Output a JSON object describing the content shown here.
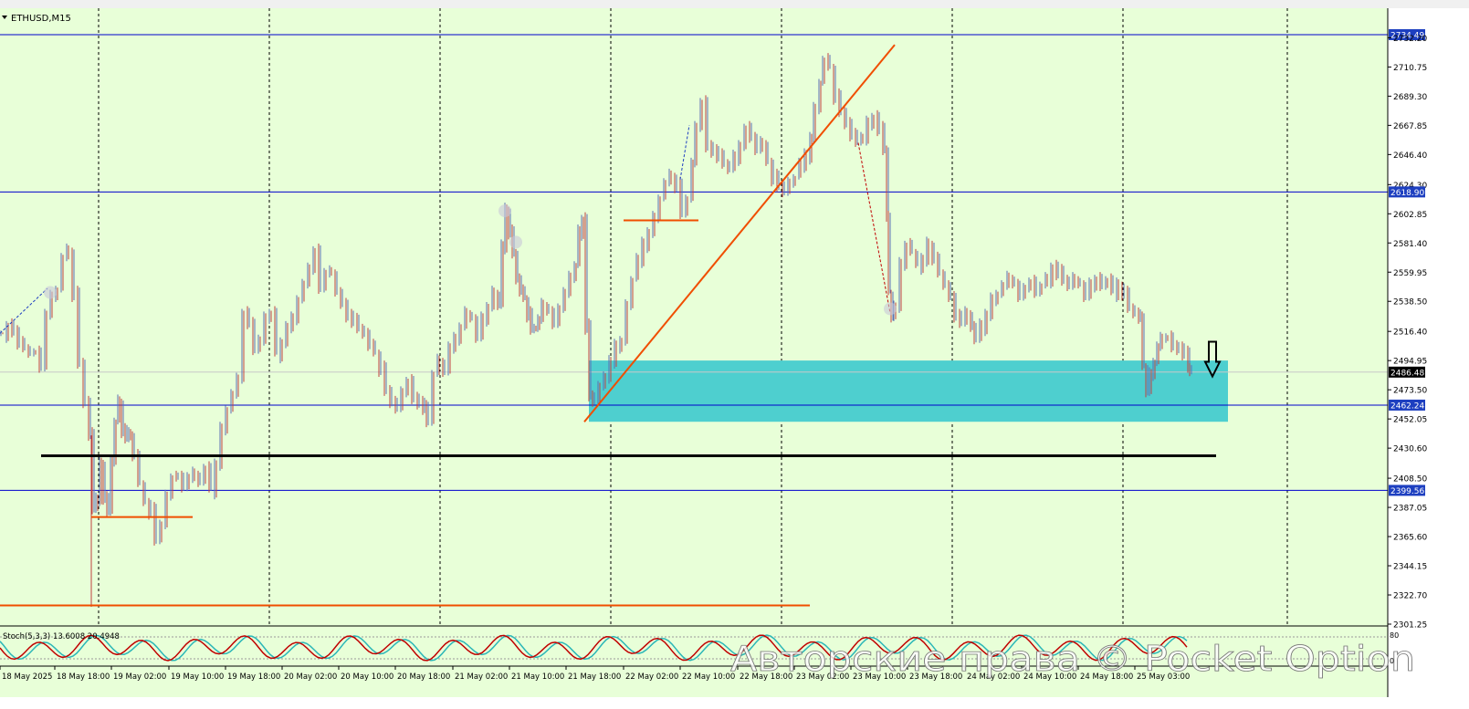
{
  "chart_data": {
    "type": "candlestick",
    "title": "ETHUSD,M15",
    "symbol": "ETHUSD",
    "timeframe": "M15",
    "ylim": [
      2301.25,
      2736.0
    ],
    "yticks": [
      "2734.49",
      "2732.20",
      "2710.75",
      "2689.30",
      "2667.85",
      "2646.40",
      "2624.30",
      "2618.90",
      "2602.85",
      "2581.40",
      "2559.95",
      "2538.50",
      "2516.40",
      "2494.95",
      "2486.48",
      "2473.50",
      "2462.24",
      "2452.05",
      "2430.60",
      "2408.50",
      "2399.56",
      "2387.05",
      "2365.60",
      "2344.15",
      "2322.70",
      "2301.25"
    ],
    "xticks": [
      "18 May 2025",
      "18 May 18:00",
      "19 May 02:00",
      "19 May 10:00",
      "19 May 18:00",
      "20 May 02:00",
      "20 May 10:00",
      "20 May 18:00",
      "21 May 02:00",
      "21 May 10:00",
      "21 May 18:00",
      "22 May 02:00",
      "22 May 10:00",
      "22 May 18:00",
      "23 May 02:00",
      "23 May 10:00",
      "23 May 18:00",
      "24 May 02:00",
      "24 May 10:00",
      "24 May 18:00",
      "25 May 03:00"
    ],
    "current_price": 2486.48,
    "horizontal_levels": [
      {
        "price": 2734.49,
        "label": "2734.49",
        "color": "#0000cc"
      },
      {
        "price": 2618.9,
        "label": "2618.90",
        "color": "#0000cc"
      },
      {
        "price": 2462.24,
        "label": "2462.24",
        "color": "#0000cc"
      },
      {
        "price": 2399.56,
        "label": "2399.56",
        "color": "#0000cc"
      }
    ],
    "series": [
      {
        "kind": "price-path",
        "points": [
          [
            0,
            2515
          ],
          [
            6,
            2520
          ],
          [
            12,
            2518
          ],
          [
            18,
            2508
          ],
          [
            24,
            2505
          ],
          [
            30,
            2500
          ],
          [
            36,
            2500
          ],
          [
            42,
            2493
          ],
          [
            48,
            2530
          ],
          [
            54,
            2542
          ],
          [
            60,
            2548
          ],
          [
            66,
            2570
          ],
          [
            72,
            2575
          ],
          [
            78,
            2545
          ],
          [
            84,
            2495
          ],
          [
            90,
            2465
          ],
          [
            96,
            2440
          ],
          [
            100,
            2385
          ],
          [
            104,
            2395
          ],
          [
            108,
            2420
          ],
          [
            112,
            2395
          ],
          [
            116,
            2385
          ],
          [
            120,
            2420
          ],
          [
            124,
            2450
          ],
          [
            128,
            2465
          ],
          [
            132,
            2445
          ],
          [
            136,
            2440
          ],
          [
            140,
            2440
          ],
          [
            144,
            2425
          ],
          [
            150,
            2405
          ],
          [
            156,
            2390
          ],
          [
            162,
            2385
          ],
          [
            168,
            2365
          ],
          [
            174,
            2375
          ],
          [
            180,
            2395
          ],
          [
            186,
            2410
          ],
          [
            192,
            2408
          ],
          [
            198,
            2405
          ],
          [
            204,
            2410
          ],
          [
            210,
            2412
          ],
          [
            216,
            2406
          ],
          [
            222,
            2415
          ],
          [
            228,
            2400
          ],
          [
            234,
            2420
          ],
          [
            240,
            2445
          ],
          [
            246,
            2460
          ],
          [
            252,
            2470
          ],
          [
            258,
            2480
          ],
          [
            264,
            2530
          ],
          [
            270,
            2525
          ],
          [
            276,
            2505
          ],
          [
            282,
            2510
          ],
          [
            288,
            2525
          ],
          [
            294,
            2530
          ],
          [
            300,
            2500
          ],
          [
            306,
            2510
          ],
          [
            312,
            2520
          ],
          [
            318,
            2525
          ],
          [
            324,
            2540
          ],
          [
            330,
            2550
          ],
          [
            336,
            2565
          ],
          [
            342,
            2575
          ],
          [
            348,
            2550
          ],
          [
            354,
            2560
          ],
          [
            360,
            2560
          ],
          [
            366,
            2545
          ],
          [
            372,
            2535
          ],
          [
            378,
            2530
          ],
          [
            384,
            2525
          ],
          [
            390,
            2520
          ],
          [
            396,
            2515
          ],
          [
            402,
            2505
          ],
          [
            408,
            2500
          ],
          [
            414,
            2490
          ],
          [
            420,
            2475
          ],
          [
            426,
            2465
          ],
          [
            432,
            2460
          ],
          [
            438,
            2470
          ],
          [
            444,
            2480
          ],
          [
            450,
            2470
          ],
          [
            456,
            2465
          ],
          [
            462,
            2460
          ],
          [
            466,
            2450
          ],
          [
            472,
            2485
          ],
          [
            478,
            2495
          ],
          [
            484,
            2490
          ],
          [
            490,
            2505
          ],
          [
            496,
            2510
          ],
          [
            502,
            2520
          ],
          [
            508,
            2530
          ],
          [
            514,
            2525
          ],
          [
            520,
            2515
          ],
          [
            526,
            2525
          ],
          [
            532,
            2535
          ],
          [
            538,
            2545
          ],
          [
            544,
            2535
          ],
          [
            548,
            2580
          ],
          [
            552,
            2605
          ],
          [
            556,
            2590
          ],
          [
            560,
            2575
          ],
          [
            564,
            2555
          ],
          [
            568,
            2545
          ],
          [
            572,
            2540
          ],
          [
            576,
            2530
          ],
          [
            580,
            2520
          ],
          [
            584,
            2520
          ],
          [
            588,
            2525
          ],
          [
            592,
            2535
          ],
          [
            598,
            2530
          ],
          [
            604,
            2525
          ],
          [
            610,
            2535
          ],
          [
            616,
            2545
          ],
          [
            622,
            2555
          ],
          [
            628,
            2565
          ],
          [
            632,
            2590
          ],
          [
            636,
            2600
          ],
          [
            640,
            2520
          ],
          [
            644,
            2470
          ],
          [
            648,
            2465
          ],
          [
            654,
            2475
          ],
          [
            660,
            2485
          ],
          [
            666,
            2495
          ],
          [
            672,
            2505
          ],
          [
            678,
            2510
          ],
          [
            684,
            2535
          ],
          [
            690,
            2555
          ],
          [
            696,
            2570
          ],
          [
            702,
            2580
          ],
          [
            708,
            2590
          ],
          [
            714,
            2600
          ],
          [
            720,
            2615
          ],
          [
            726,
            2625
          ],
          [
            732,
            2630
          ],
          [
            738,
            2625
          ],
          [
            744,
            2605
          ],
          [
            750,
            2615
          ],
          [
            756,
            2640
          ],
          [
            760,
            2665
          ],
          [
            766,
            2685
          ],
          [
            772,
            2655
          ],
          [
            778,
            2650
          ],
          [
            784,
            2645
          ],
          [
            790,
            2640
          ],
          [
            796,
            2635
          ],
          [
            802,
            2645
          ],
          [
            808,
            2655
          ],
          [
            814,
            2665
          ],
          [
            820,
            2660
          ],
          [
            826,
            2650
          ],
          [
            832,
            2655
          ],
          [
            838,
            2640
          ],
          [
            844,
            2630
          ],
          [
            850,
            2625
          ],
          [
            856,
            2620
          ],
          [
            862,
            2625
          ],
          [
            868,
            2630
          ],
          [
            874,
            2640
          ],
          [
            880,
            2645
          ],
          [
            886,
            2660
          ],
          [
            890,
            2680
          ],
          [
            896,
            2700
          ],
          [
            900,
            2715
          ],
          [
            906,
            2710
          ],
          [
            912,
            2690
          ],
          [
            918,
            2680
          ],
          [
            924,
            2670
          ],
          [
            930,
            2660
          ],
          [
            936,
            2655
          ],
          [
            942,
            2660
          ],
          [
            948,
            2670
          ],
          [
            954,
            2675
          ],
          [
            960,
            2665
          ],
          [
            966,
            2650
          ],
          [
            970,
            2600
          ],
          [
            972,
            2545
          ],
          [
            975,
            2530
          ],
          [
            978,
            2535
          ],
          [
            984,
            2565
          ],
          [
            990,
            2580
          ],
          [
            996,
            2575
          ],
          [
            1002,
            2565
          ],
          [
            1008,
            2570
          ],
          [
            1014,
            2580
          ],
          [
            1020,
            2570
          ],
          [
            1026,
            2560
          ],
          [
            1032,
            2550
          ],
          [
            1038,
            2540
          ],
          [
            1044,
            2530
          ],
          [
            1050,
            2525
          ],
          [
            1056,
            2530
          ],
          [
            1062,
            2520
          ],
          [
            1066,
            2510
          ],
          [
            1072,
            2520
          ],
          [
            1078,
            2530
          ],
          [
            1084,
            2540
          ],
          [
            1090,
            2545
          ],
          [
            1096,
            2550
          ],
          [
            1102,
            2555
          ],
          [
            1108,
            2550
          ],
          [
            1114,
            2545
          ],
          [
            1120,
            2550
          ],
          [
            1126,
            2552
          ],
          [
            1132,
            2545
          ],
          [
            1138,
            2550
          ],
          [
            1144,
            2555
          ],
          [
            1150,
            2565
          ],
          [
            1156,
            2560
          ],
          [
            1162,
            2555
          ],
          [
            1168,
            2550
          ],
          [
            1174,
            2555
          ],
          [
            1180,
            2550
          ],
          [
            1186,
            2545
          ],
          [
            1192,
            2550
          ],
          [
            1198,
            2555
          ],
          [
            1204,
            2550
          ],
          [
            1210,
            2555
          ],
          [
            1216,
            2545
          ],
          [
            1222,
            2550
          ],
          [
            1228,
            2545
          ],
          [
            1234,
            2535
          ],
          [
            1240,
            2530
          ],
          [
            1246,
            2525
          ],
          [
            1250,
            2490
          ],
          [
            1254,
            2475
          ],
          [
            1258,
            2485
          ],
          [
            1262,
            2495
          ],
          [
            1266,
            2505
          ],
          [
            1270,
            2510
          ],
          [
            1276,
            2512
          ],
          [
            1282,
            2508
          ],
          [
            1288,
            2505
          ],
          [
            1294,
            2500
          ],
          [
            1300,
            2490
          ],
          [
            1302,
            2486.48
          ]
        ],
        "color": "#5b6fb5"
      }
    ],
    "annotations": [
      {
        "kind": "zone",
        "price_top": 2495.0,
        "price_bottom": 2450.0,
        "color": "#4ecfcf"
      },
      {
        "kind": "trendline",
        "from": [
          640,
          2450
        ],
        "to": [
          980,
          2727
        ],
        "color": "#f04e00"
      },
      {
        "kind": "segment",
        "from": [
          45,
          2425
        ],
        "to": [
          1332,
          2425
        ],
        "color": "#000000"
      },
      {
        "kind": "segment",
        "from": [
          0,
          2315
        ],
        "to": [
          887,
          2315
        ],
        "color": "#f04e00"
      },
      {
        "kind": "segment",
        "from": [
          100,
          2380
        ],
        "to": [
          211,
          2380
        ],
        "color": "#f04e00"
      },
      {
        "kind": "segment",
        "from": [
          683,
          2598
        ],
        "to": [
          765,
          2598
        ],
        "color": "#f04e00"
      },
      {
        "kind": "arrow-down",
        "at": [
          1328,
          2490
        ]
      }
    ],
    "indicator": {
      "label": "Stoch(5,3,3) 13.6008 20.4948",
      "scale_top": "80",
      "scale_bottom": "0",
      "colors": {
        "main": "#c00000",
        "signal": "#2bb7b7"
      }
    },
    "grid": true,
    "colors": {
      "background": "#e8ffd8",
      "grid": "#000000",
      "candle_bull": "#5b6fb5",
      "candle_bear": "#c04040"
    }
  },
  "watermark": "Авторские права © Pocket Option"
}
